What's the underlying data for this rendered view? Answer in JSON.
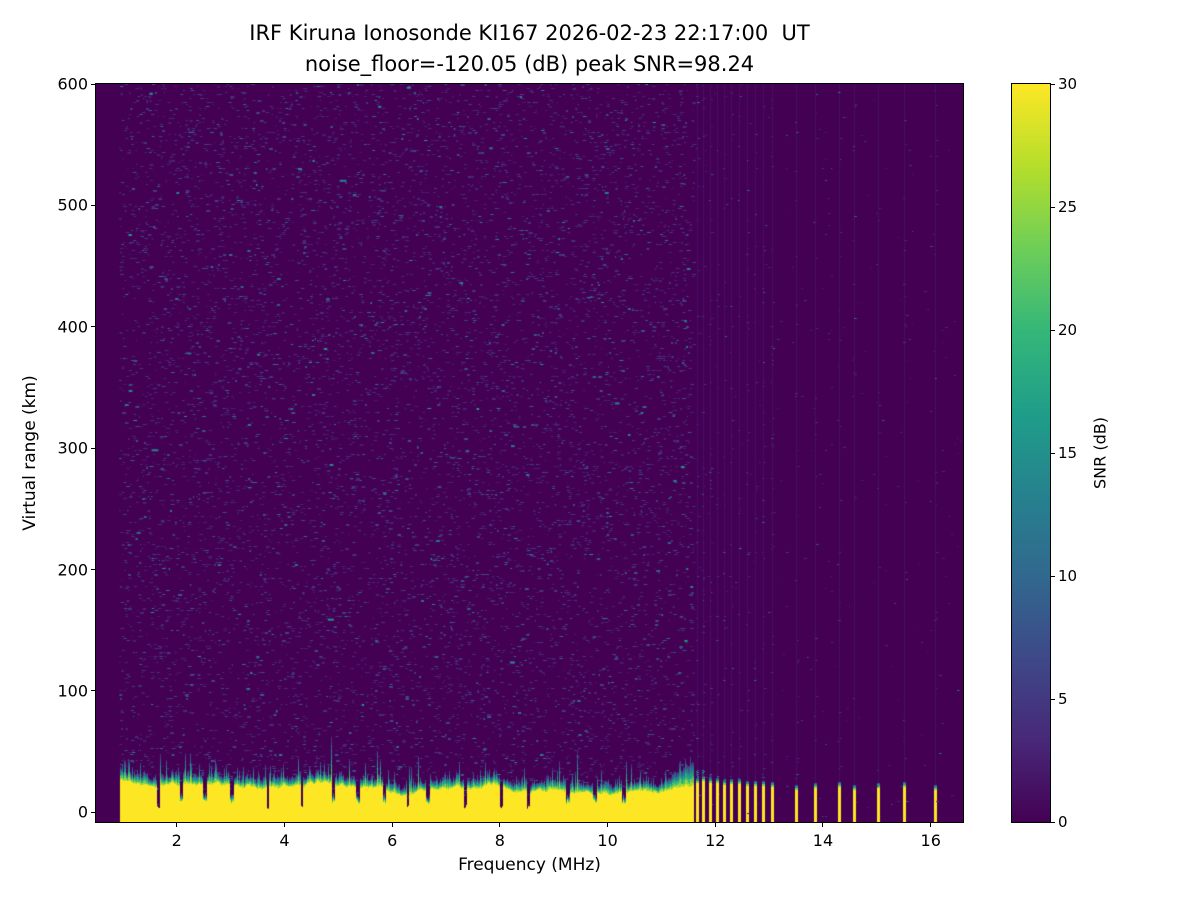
{
  "chart_data": {
    "type": "heatmap",
    "title": "IRF Kiruna Ionosonde KI167 2026-02-23 22:17:00  UT",
    "subtitle": "noise_floor=-120.05 (dB) peak SNR=98.24",
    "xlabel": "Frequency (MHz)",
    "ylabel": "Virtual range (km)",
    "x_range": [
      0.5,
      16.6
    ],
    "y_range": [
      -8,
      600
    ],
    "x_ticks": [
      2,
      4,
      6,
      8,
      10,
      12,
      14,
      16
    ],
    "y_ticks": [
      0,
      100,
      200,
      300,
      400,
      500,
      600
    ],
    "noise_floor_db": -120.05,
    "peak_snr_db": 98.24,
    "colorbar": {
      "label": "SNR (dB)",
      "range": [
        0,
        30
      ],
      "ticks": [
        0,
        5,
        10,
        15,
        20,
        25,
        30
      ],
      "colormap": "viridis",
      "stops": [
        "#440154",
        "#482878",
        "#3e4989",
        "#31688e",
        "#26828e",
        "#1f9e89",
        "#35b779",
        "#6ece58",
        "#b5de2b",
        "#fde725"
      ]
    },
    "features": {
      "data_freq_start_mhz": 0.95,
      "continuous_band": {
        "freq_start_mhz": 0.95,
        "freq_end_mhz": 11.58,
        "yellow_top_km_typical": 23,
        "transition_top_km_typical": 34,
        "deep_notch_freqs_mhz": [
          1.65,
          3.68,
          4.32,
          6.28,
          7.35,
          8.02,
          8.52
        ],
        "shallow_notch_freqs_mhz": [
          2.08,
          2.52,
          3.02,
          4.9,
          5.35,
          5.85,
          6.65,
          9.25,
          9.75,
          10.3
        ],
        "description": "Strong ground-clutter band near 0-30 km virtual range at max SNR (~30 dB) with jagged teal/green upper transition edge and dark interference notches"
      },
      "rfi_stripes": {
        "freq_start_mhz": 11.6,
        "freq_end_mhz": 16.2,
        "stripe_freqs_mhz": [
          11.66,
          11.78,
          11.9,
          12.03,
          12.16,
          12.3,
          12.44,
          12.58,
          12.73,
          12.89,
          13.05,
          13.5,
          13.86,
          14.3,
          14.58,
          15.03,
          15.5,
          16.08
        ],
        "stripe_top_km": 24,
        "description": "Above ~11.6 MHz the sounding becomes discrete yellow columns with gaps, plus faint vertical noise striping at the same frequencies over the full height"
      },
      "background_noise": {
        "base_snr_db": 0,
        "speckle_snr_db_max": 16,
        "description": "Sparse blue/teal speckle noise over dark purple 0 dB background between ~1 and 11.6 MHz; nearly uniform dark purple with column-confined speckle above 11.6 MHz"
      }
    }
  }
}
